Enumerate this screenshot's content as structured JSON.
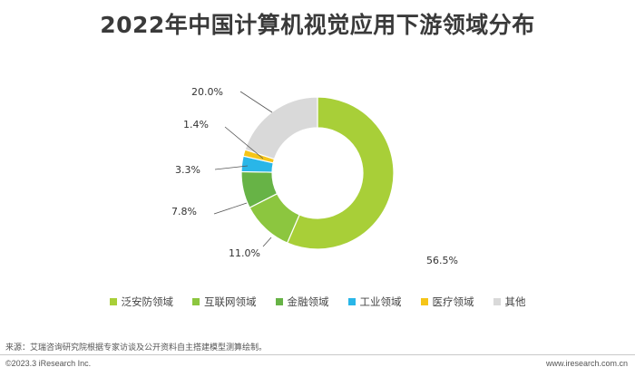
{
  "chart_data": {
    "type": "pie",
    "title": "2022年中国计算机视觉应用下游领域分布",
    "categories": [
      "泛安防领域",
      "互联网领域",
      "金融领域",
      "工业领域",
      "医疗领域",
      "其他"
    ],
    "values": [
      56.5,
      11.0,
      7.8,
      3.3,
      1.4,
      20.0
    ],
    "value_labels": [
      "56.5%",
      "11.0%",
      "7.8%",
      "3.3%",
      "1.4%",
      "20.0%"
    ],
    "colors": [
      "#a8cf38",
      "#8cc63f",
      "#67b346",
      "#29b6e8",
      "#f5c518",
      "#d9d9d9"
    ],
    "donut": true,
    "legend_position": "bottom"
  },
  "source": "来源：艾瑞咨询研究院根据专家访谈及公开资料自主搭建模型测算绘制。",
  "copyright": "©2023.3 iResearch Inc.",
  "website": "www.iresearch.com.cn"
}
